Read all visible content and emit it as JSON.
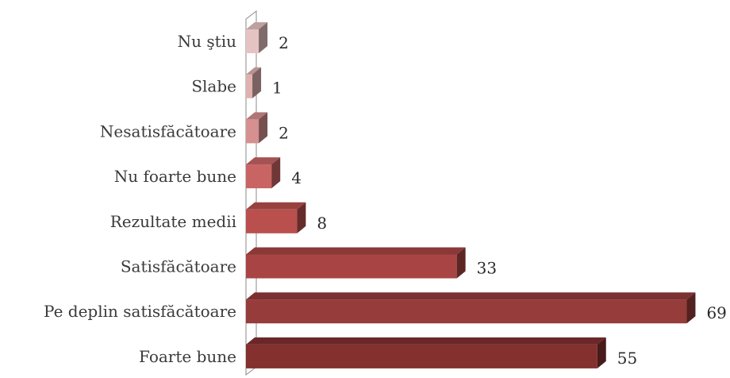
{
  "chart_data": {
    "type": "bar",
    "orientation": "horizontal",
    "style": "3d",
    "title": "",
    "xlabel": "",
    "ylabel": "",
    "grid": false,
    "legend": "none",
    "xlim": [
      0,
      69
    ],
    "categories": [
      "Nu ştiu",
      "Slabe",
      "Nesatisfăcătoare",
      "Nu foarte bune",
      "Rezultate medii",
      "Satisfăcătoare",
      "Pe deplin satisfăcătoare",
      "Foarte bune"
    ],
    "values": [
      2,
      1,
      2,
      4,
      8,
      33,
      69,
      55
    ],
    "colors": [
      "#e6c3c3",
      "#e0b1b1",
      "#d69090",
      "#c96464",
      "#b9504e",
      "#a84544",
      "#963c3b",
      "#83302f"
    ]
  }
}
